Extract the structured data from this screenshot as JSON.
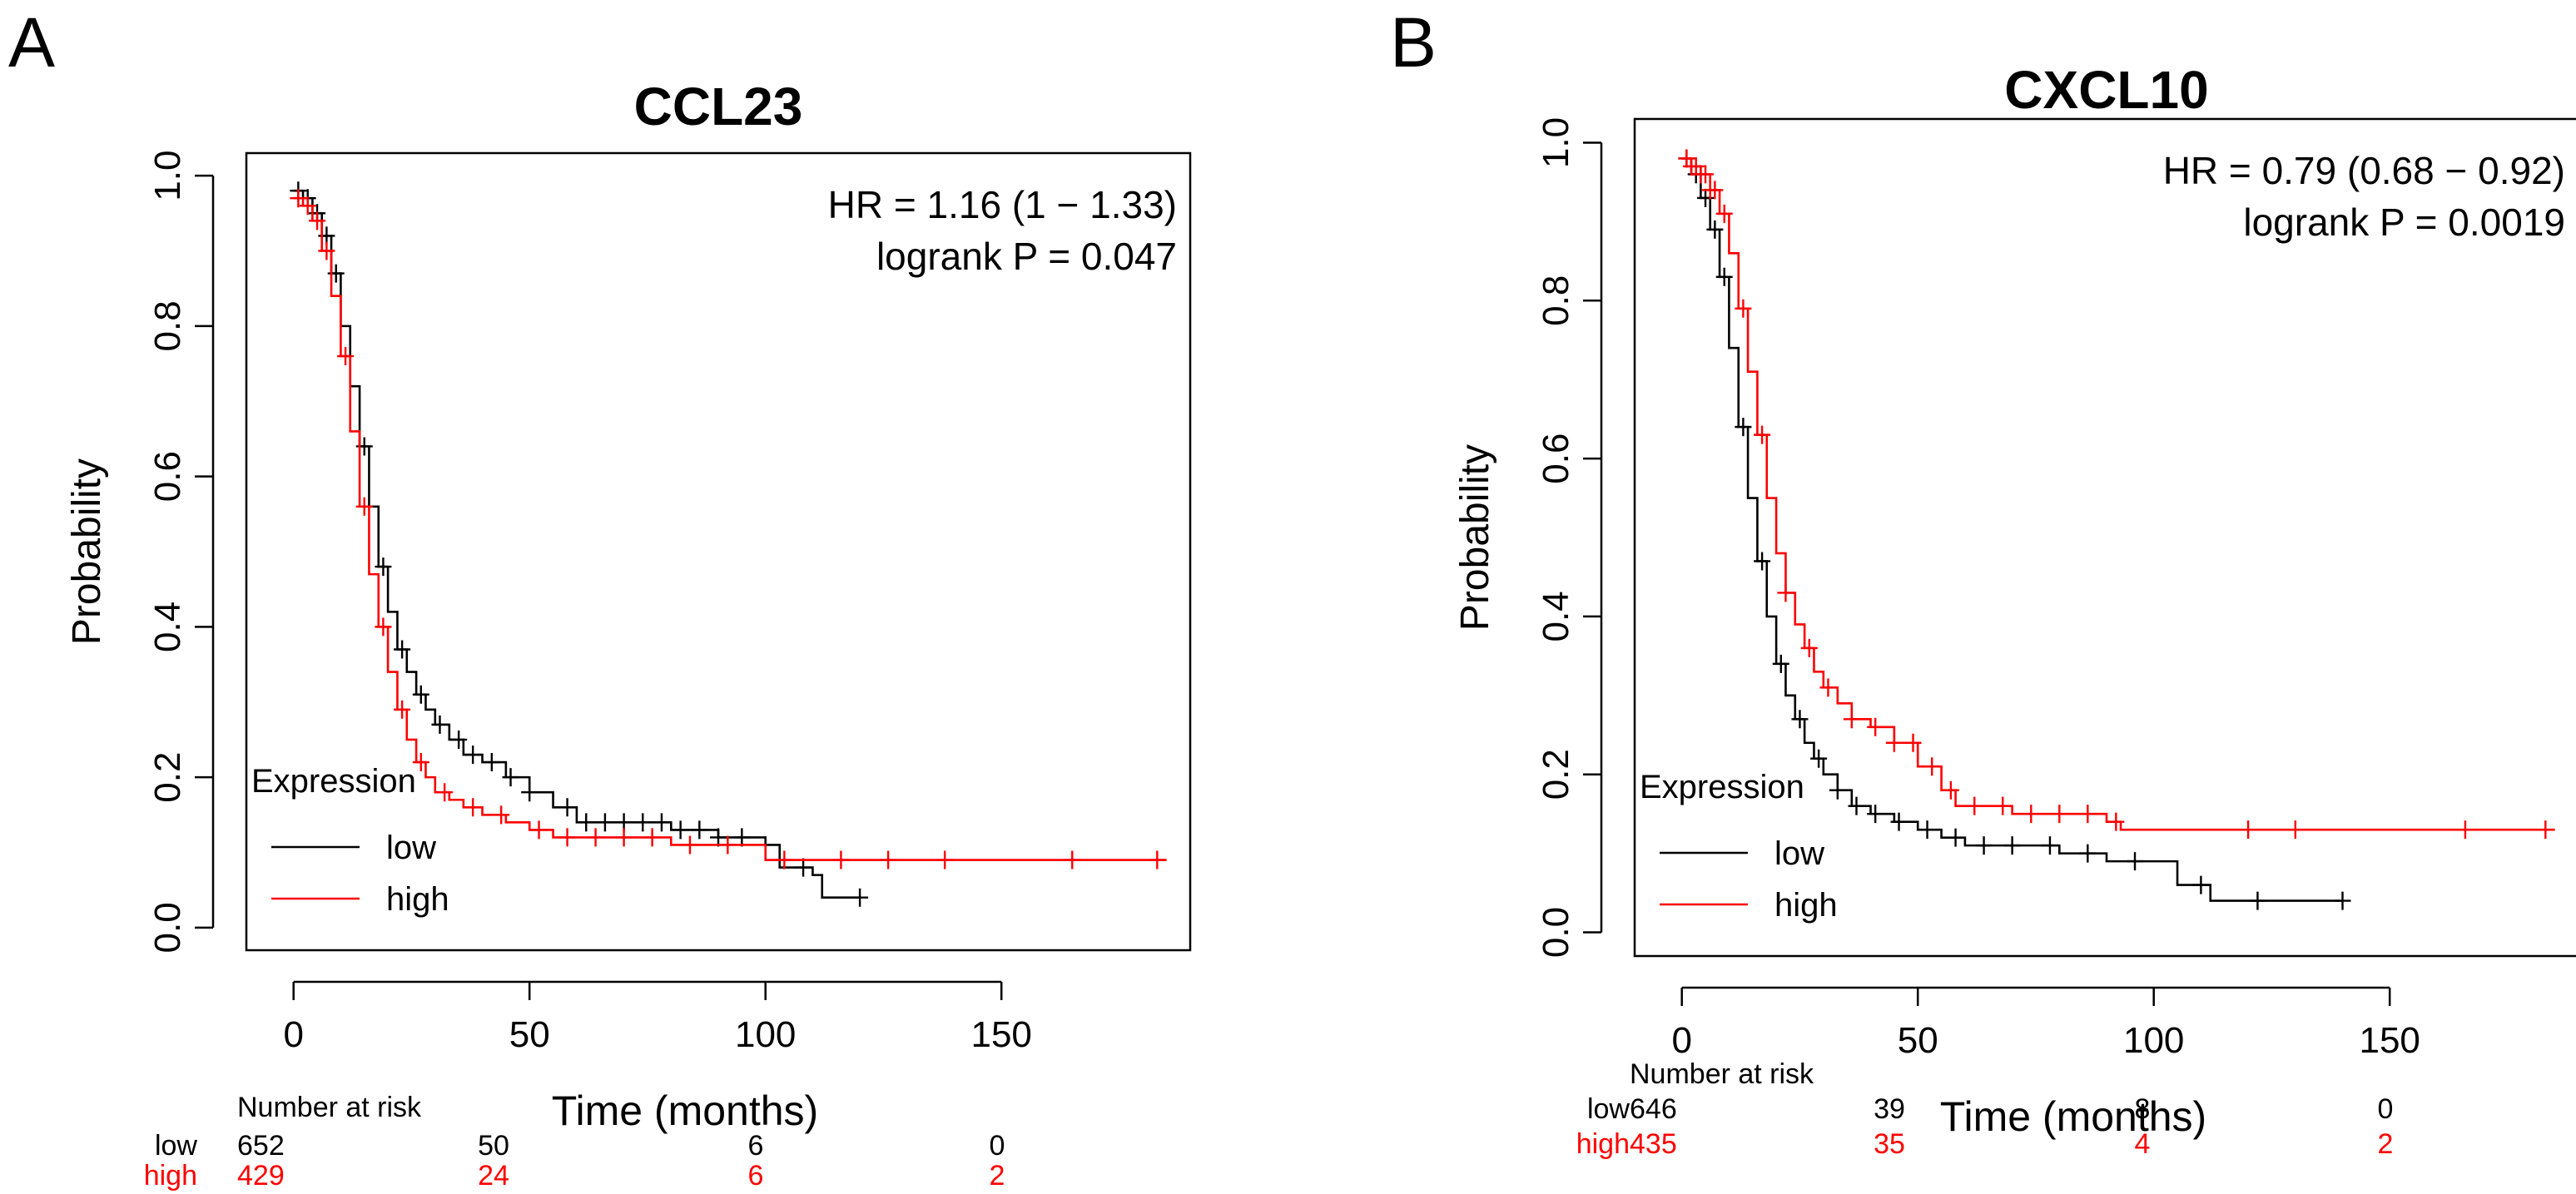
{
  "chart_data": [
    {
      "type": "line",
      "panel_label": "A",
      "title": "CCL23",
      "xlabel": "Time (months)",
      "ylabel": "Probability",
      "xlim": [
        -10,
        190
      ],
      "ylim": [
        -0.03,
        1.03
      ],
      "x_ticks": [
        0,
        50,
        100,
        150
      ],
      "y_ticks": [
        0.0,
        0.2,
        0.4,
        0.6,
        0.8,
        1.0
      ],
      "x_tick_labels": [
        "0",
        "50",
        "100",
        "150"
      ],
      "y_tick_labels": [
        "0.0",
        "0.2",
        "0.4",
        "0.6",
        "0.8",
        "1.0"
      ],
      "annotation": [
        "HR = 1.16 (1 − 1.33)",
        "logrank P = 0.047"
      ],
      "legend": {
        "title": "Expression",
        "position": "bottom-left"
      },
      "series": [
        {
          "name": "low",
          "color": "#000000",
          "x": [
            0,
            2,
            4,
            6,
            8,
            10,
            12,
            14,
            16,
            18,
            20,
            22,
            24,
            26,
            28,
            30,
            33,
            36,
            40,
            45,
            50,
            55,
            60,
            70,
            80,
            90,
            100,
            103,
            107,
            110,
            112,
            120
          ],
          "y": [
            0.98,
            0.97,
            0.95,
            0.92,
            0.87,
            0.8,
            0.72,
            0.64,
            0.56,
            0.48,
            0.42,
            0.37,
            0.34,
            0.31,
            0.29,
            0.27,
            0.25,
            0.23,
            0.22,
            0.2,
            0.18,
            0.16,
            0.14,
            0.14,
            0.13,
            0.12,
            0.11,
            0.08,
            0.08,
            0.07,
            0.04,
            0.04
          ],
          "censor_x": [
            1,
            3,
            5,
            7,
            9,
            15,
            19,
            23,
            27,
            31,
            35,
            38,
            42,
            46,
            50,
            58,
            62,
            66,
            70,
            74,
            78,
            82,
            86,
            90,
            95,
            108,
            120
          ]
        },
        {
          "name": "high",
          "color": "#ff0000",
          "x": [
            0,
            2,
            4,
            6,
            8,
            10,
            12,
            14,
            16,
            18,
            20,
            22,
            24,
            26,
            28,
            30,
            33,
            36,
            40,
            45,
            50,
            55,
            60,
            70,
            80,
            90,
            100,
            110,
            120,
            150,
            185
          ],
          "y": [
            0.97,
            0.96,
            0.94,
            0.9,
            0.84,
            0.76,
            0.66,
            0.56,
            0.47,
            0.4,
            0.34,
            0.29,
            0.25,
            0.22,
            0.2,
            0.18,
            0.17,
            0.16,
            0.15,
            0.14,
            0.13,
            0.12,
            0.12,
            0.12,
            0.11,
            0.11,
            0.09,
            0.09,
            0.09,
            0.09,
            0.09
          ],
          "censor_x": [
            1,
            3,
            5,
            7,
            11,
            15,
            19,
            23,
            27,
            32,
            38,
            44,
            52,
            58,
            64,
            70,
            76,
            84,
            92,
            104,
            116,
            126,
            138,
            165,
            183
          ]
        }
      ],
      "risk_table": {
        "title": "Number at risk",
        "times": [
          0,
          50,
          100,
          150
        ],
        "rows": [
          {
            "name": "low",
            "color": "#000000",
            "values": [
              "652",
              "50",
              "6",
              "0"
            ]
          },
          {
            "name": "high",
            "color": "#ff0000",
            "values": [
              "429",
              "24",
              "6",
              "2"
            ]
          }
        ]
      }
    },
    {
      "type": "line",
      "panel_label": "B",
      "title": "CXCL10",
      "xlabel": "Time (months)",
      "ylabel": "Probability",
      "xlim": [
        -10,
        190
      ],
      "ylim": [
        -0.03,
        1.03
      ],
      "x_ticks": [
        0,
        50,
        100,
        150
      ],
      "y_ticks": [
        0.0,
        0.2,
        0.4,
        0.6,
        0.8,
        1.0
      ],
      "x_tick_labels": [
        "0",
        "50",
        "100",
        "150"
      ],
      "y_tick_labels": [
        "0.0",
        "0.2",
        "0.4",
        "0.6",
        "0.8",
        "1.0"
      ],
      "annotation": [
        "HR = 0.79 (0.68 − 0.92)",
        "logrank P = 0.0019"
      ],
      "legend": {
        "title": "Expression",
        "position": "bottom-left"
      },
      "series": [
        {
          "name": "low",
          "color": "#000000",
          "x": [
            0,
            2,
            4,
            6,
            8,
            10,
            12,
            14,
            16,
            18,
            20,
            22,
            24,
            26,
            28,
            30,
            33,
            36,
            40,
            45,
            50,
            55,
            60,
            70,
            80,
            90,
            100,
            105,
            110,
            112,
            140
          ],
          "y": [
            0.98,
            0.96,
            0.93,
            0.89,
            0.83,
            0.74,
            0.64,
            0.55,
            0.47,
            0.4,
            0.34,
            0.3,
            0.27,
            0.24,
            0.22,
            0.2,
            0.18,
            0.16,
            0.15,
            0.14,
            0.13,
            0.12,
            0.11,
            0.11,
            0.1,
            0.09,
            0.09,
            0.06,
            0.06,
            0.04,
            0.04
          ],
          "censor_x": [
            1,
            3,
            5,
            7,
            9,
            13,
            17,
            21,
            25,
            29,
            33,
            37,
            41,
            46,
            52,
            58,
            64,
            70,
            78,
            86,
            96,
            110,
            122,
            140
          ]
        },
        {
          "name": "high",
          "color": "#ff0000",
          "x": [
            0,
            2,
            4,
            6,
            8,
            10,
            12,
            14,
            16,
            18,
            20,
            22,
            24,
            26,
            28,
            30,
            33,
            36,
            40,
            45,
            50,
            55,
            58,
            60,
            70,
            80,
            90,
            93,
            120,
            150,
            185
          ],
          "y": [
            0.98,
            0.97,
            0.96,
            0.94,
            0.91,
            0.86,
            0.79,
            0.71,
            0.63,
            0.55,
            0.48,
            0.43,
            0.39,
            0.36,
            0.33,
            0.31,
            0.29,
            0.27,
            0.26,
            0.24,
            0.21,
            0.18,
            0.16,
            0.16,
            0.15,
            0.15,
            0.14,
            0.13,
            0.13,
            0.13,
            0.13
          ],
          "censor_x": [
            1,
            2,
            3,
            4,
            5,
            6,
            7,
            9,
            13,
            17,
            22,
            27,
            31,
            36,
            41,
            45,
            49,
            53,
            57,
            62,
            68,
            74,
            80,
            86,
            92,
            120,
            130,
            166,
            183
          ]
        }
      ],
      "risk_table": {
        "title": "Number at risk",
        "times": [
          0,
          50,
          100,
          150
        ],
        "rows": [
          {
            "name": "low",
            "color": "#000000",
            "values": [
              "646",
              "39",
              "8",
              "0"
            ]
          },
          {
            "name": "high",
            "color": "#ff0000",
            "values": [
              "435",
              "35",
              "4",
              "2"
            ]
          }
        ]
      }
    }
  ]
}
